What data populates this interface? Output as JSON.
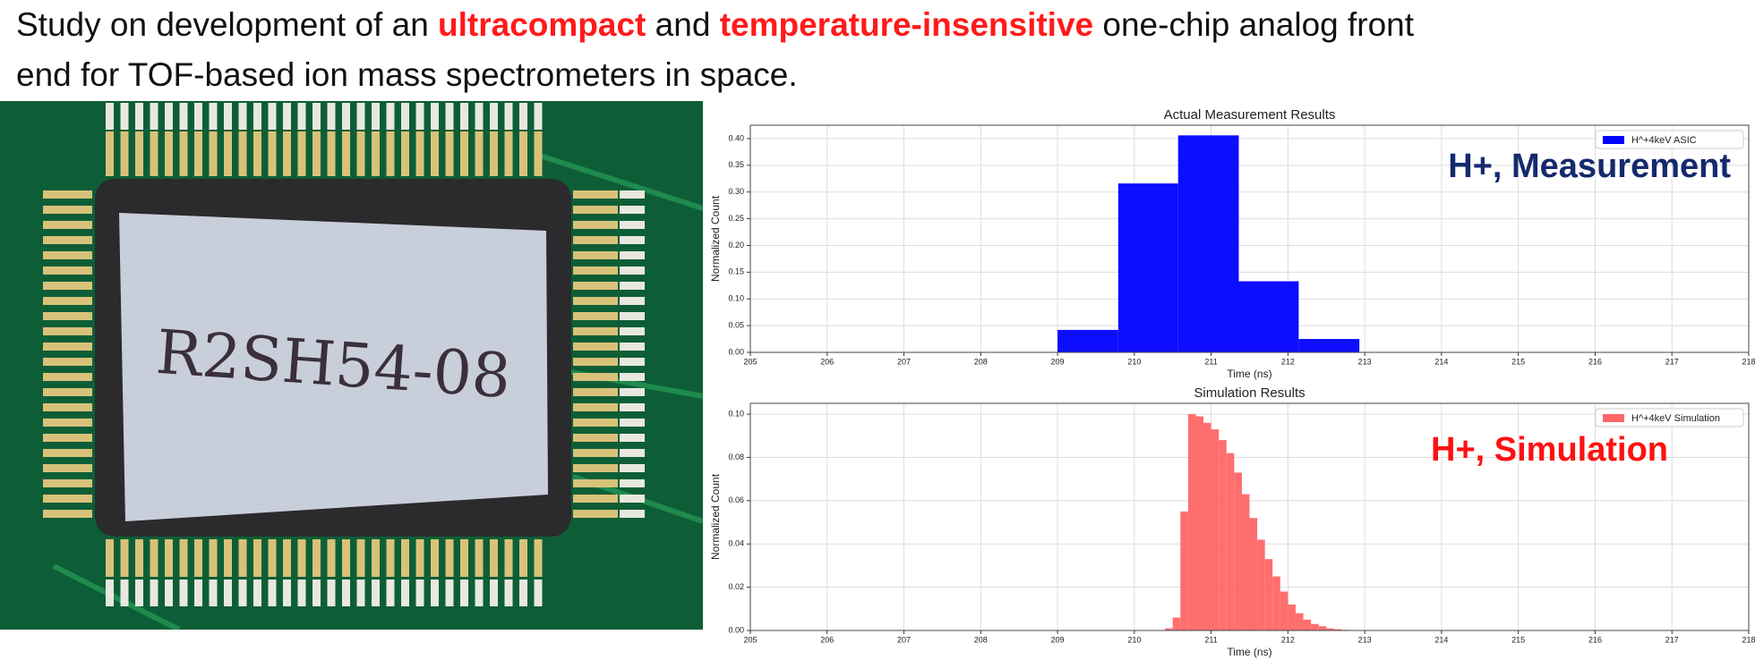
{
  "header": {
    "line1": [
      {
        "text": "Study on development of an ",
        "highlight": false
      },
      {
        "text": "ultracompact",
        "highlight": true
      },
      {
        "text": " and ",
        "highlight": false
      },
      {
        "text": "temperature-insensitive",
        "highlight": true
      },
      {
        "text": " one-chip analog front",
        "highlight": false
      }
    ],
    "line2": "end for TOF-based ion mass spectrometers in space."
  },
  "photo": {
    "label": "R2SH54-08"
  },
  "chart_data": [
    {
      "type": "histogram",
      "title": "Actual Measurement Results",
      "xlabel": "Time (ns)",
      "ylabel": "Normalized Count",
      "bins": [
        209.0,
        209.79,
        210.57,
        211.36,
        212.14,
        212.93
      ],
      "series": [
        {
          "name": "H^+4keV ASIC",
          "color": "#0000ff",
          "values": [
            0.042,
            0.316,
            0.406,
            0.133,
            0.025
          ]
        }
      ],
      "xlim": [
        205,
        218
      ],
      "xticks": [
        205,
        206,
        207,
        208,
        209,
        210,
        211,
        212,
        213,
        214,
        215,
        216,
        217,
        218
      ],
      "ylim": [
        0,
        0.425
      ],
      "yticks": [
        {
          "value": 0,
          "label": "0.00"
        },
        0.05,
        {
          "value": 0.1,
          "label": "0.10"
        },
        0.15,
        {
          "value": 0.2,
          "label": "0.20"
        },
        0.25,
        {
          "value": 0.3,
          "label": "0.30"
        },
        0.35,
        {
          "value": 0.4,
          "label": "0.40"
        }
      ],
      "grid": true,
      "legend": "upper right",
      "annotation": {
        "text": "H+, Measurement",
        "color": "#142a6e"
      }
    },
    {
      "type": "histogram",
      "title": "Simulation Results",
      "xlabel": "Time (ns)",
      "ylabel": "Normalized Count",
      "bins": [
        210.4,
        210.5,
        210.6,
        210.7,
        210.8,
        210.9,
        211.0,
        211.1,
        211.2,
        211.3,
        211.4,
        211.5,
        211.6,
        211.7,
        211.8,
        211.9,
        212.0,
        212.1,
        212.2,
        212.3,
        212.4,
        212.5,
        212.6,
        212.7,
        212.8,
        212.9
      ],
      "series": [
        {
          "name": "H^+4keV Simulation",
          "color": "#ff6666",
          "values": [
            0.001,
            0.006,
            0.055,
            0.1,
            0.099,
            0.096,
            0.093,
            0.088,
            0.082,
            0.073,
            0.063,
            0.052,
            0.042,
            0.033,
            0.025,
            0.018,
            0.012,
            0.008,
            0.005,
            0.003,
            0.002,
            0.001,
            0.0006,
            0.0003,
            0.0001
          ]
        }
      ],
      "xlim": [
        205,
        218
      ],
      "xticks": [
        205,
        206,
        207,
        208,
        209,
        210,
        211,
        212,
        213,
        214,
        215,
        216,
        217,
        218
      ],
      "ylim": [
        0,
        0.105
      ],
      "yticks": [
        {
          "value": 0,
          "label": "0.00"
        },
        0.02,
        0.04,
        0.06,
        0.08,
        {
          "value": 0.1,
          "label": "0.10"
        }
      ],
      "grid": true,
      "legend": "upper right",
      "annotation": {
        "text": "H+, Simulation",
        "color": "#ff1010"
      }
    }
  ]
}
